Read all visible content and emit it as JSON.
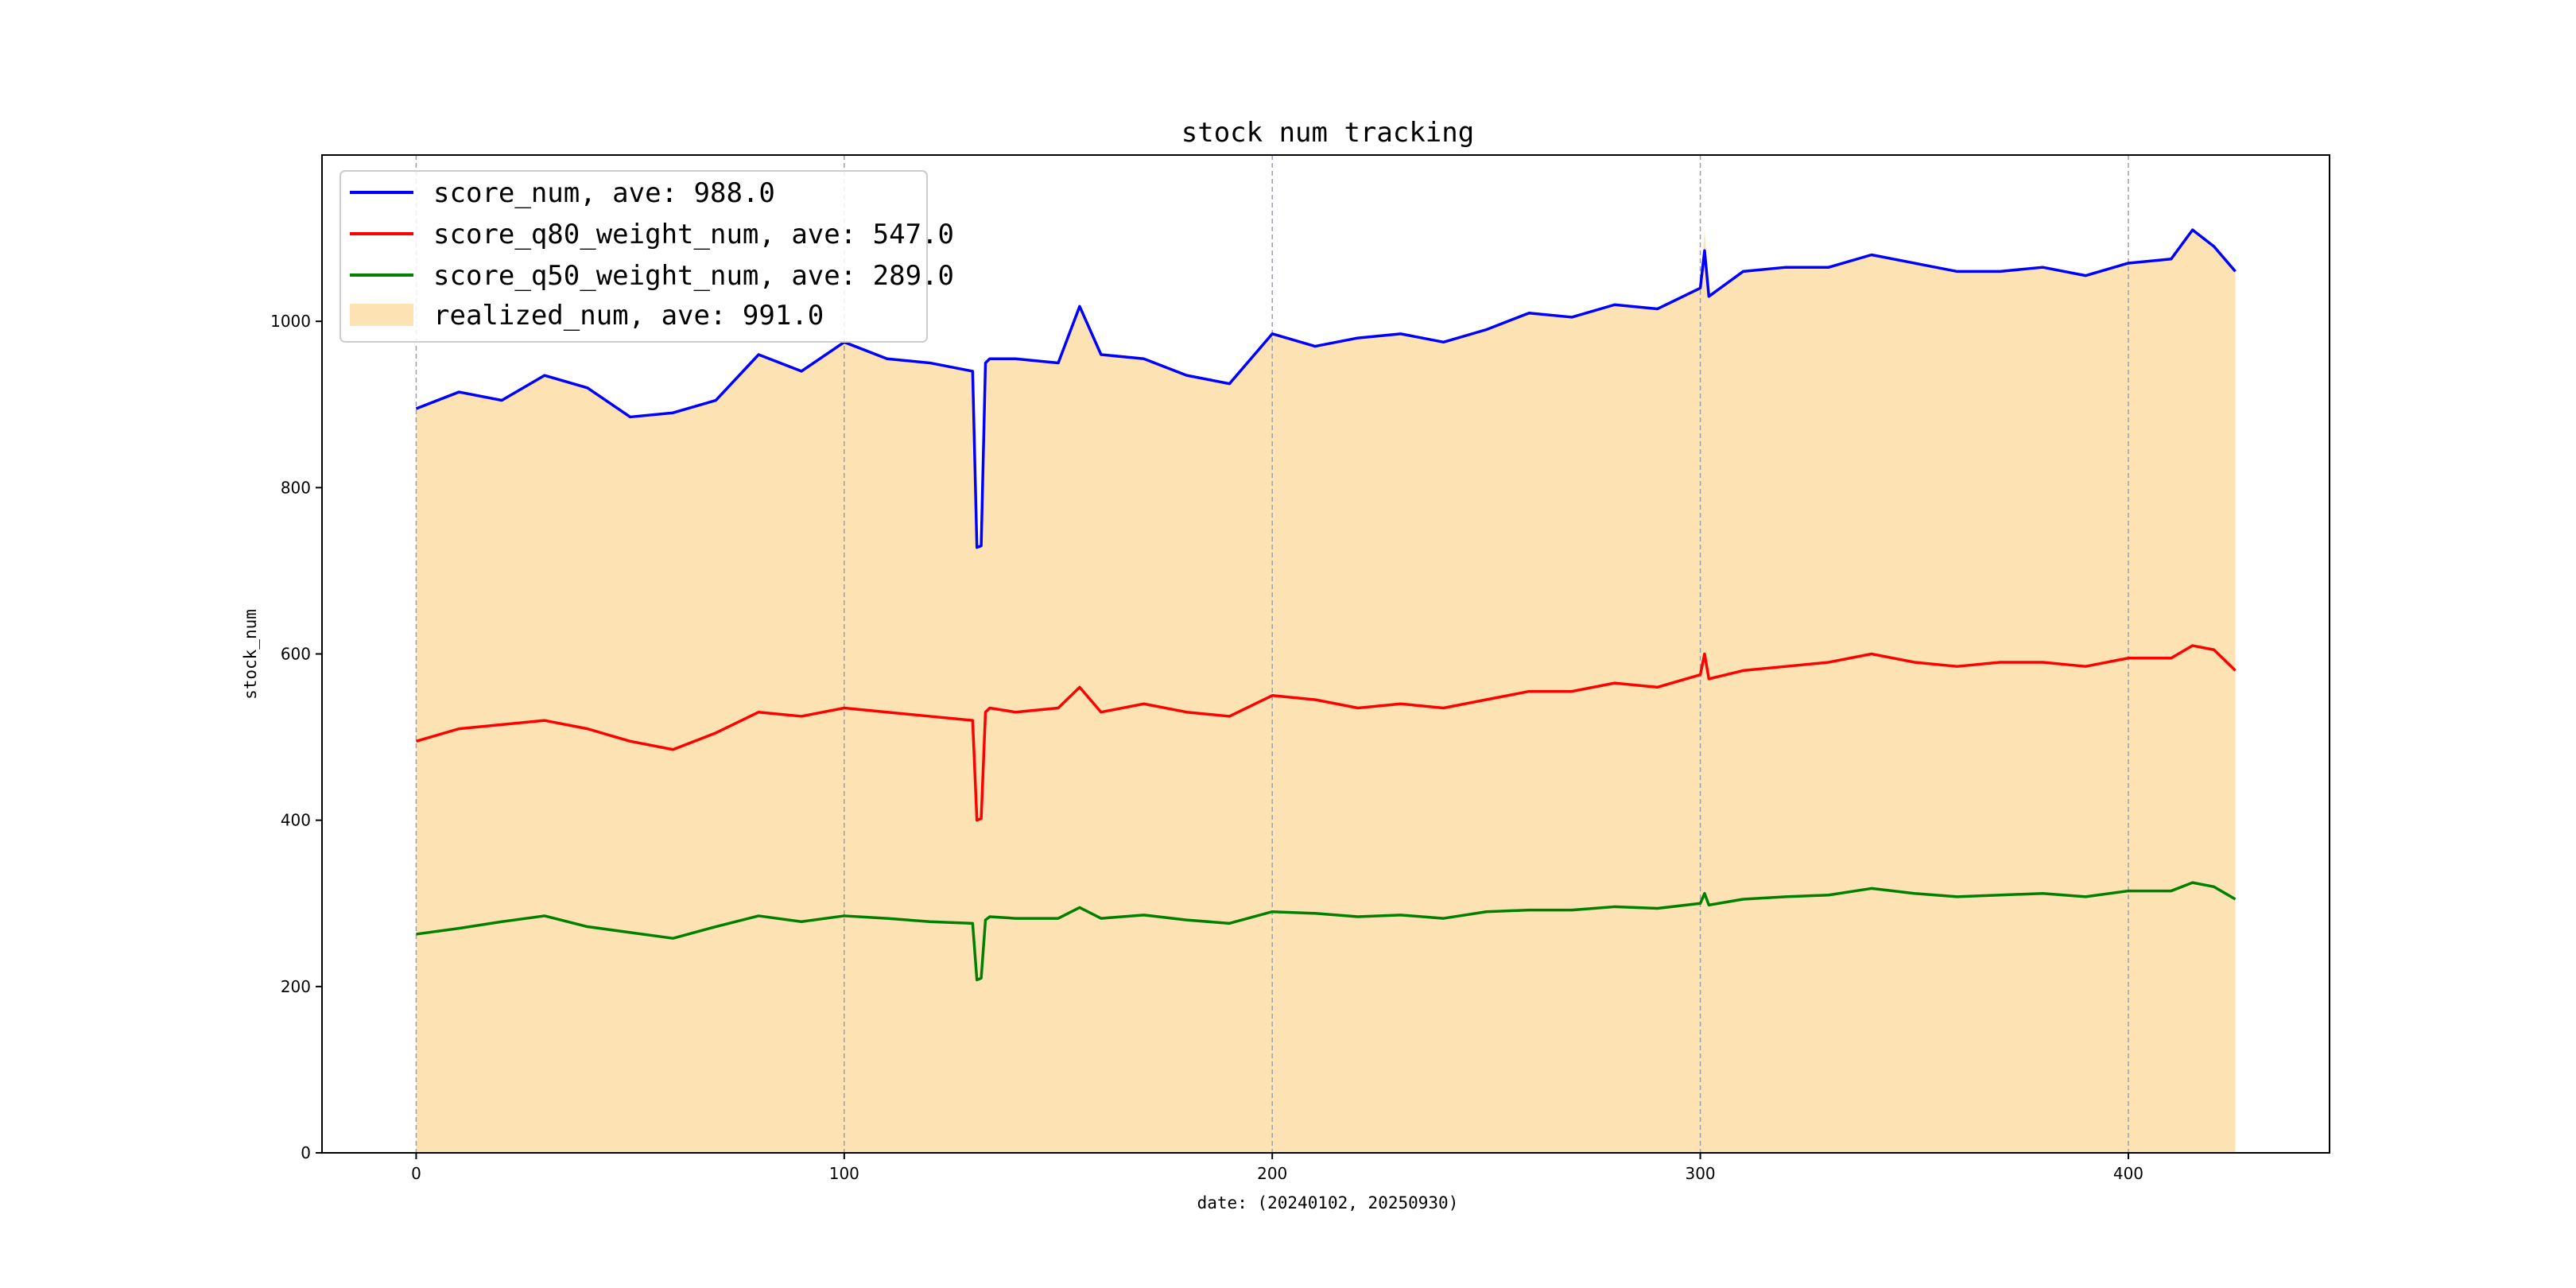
{
  "chart_data": {
    "type": "line",
    "title": "stock num tracking",
    "xlabel": "date: (20240102, 20250930)",
    "ylabel": "stock_num",
    "xlim": [
      -22,
      447
    ],
    "ylim": [
      0,
      1200
    ],
    "x_ticks": [
      0,
      100,
      200,
      300,
      400
    ],
    "y_ticks": [
      0,
      200,
      400,
      600,
      800,
      1000
    ],
    "grid": "x-axis dashed",
    "legend_position": "top-left",
    "x": [
      0,
      10,
      20,
      30,
      40,
      50,
      60,
      70,
      80,
      90,
      100,
      110,
      120,
      130,
      131,
      132,
      133,
      134,
      140,
      150,
      155,
      160,
      170,
      180,
      190,
      200,
      210,
      220,
      230,
      240,
      250,
      260,
      270,
      280,
      290,
      300,
      301,
      302,
      310,
      320,
      330,
      340,
      350,
      360,
      370,
      380,
      390,
      400,
      410,
      415,
      420,
      425
    ],
    "series": [
      {
        "name": "score_num",
        "legend": "score_num, ave: 988.0",
        "kind": "line",
        "color": "#0000ff",
        "values": [
          895,
          915,
          905,
          935,
          920,
          885,
          890,
          905,
          960,
          940,
          975,
          955,
          950,
          940,
          728,
          730,
          950,
          955,
          955,
          950,
          1018,
          960,
          955,
          935,
          925,
          985,
          970,
          980,
          985,
          975,
          990,
          1010,
          1005,
          1020,
          1015,
          1040,
          1085,
          1030,
          1060,
          1065,
          1065,
          1080,
          1070,
          1060,
          1060,
          1065,
          1055,
          1070,
          1075,
          1110,
          1090,
          1060
        ]
      },
      {
        "name": "score_q80_weight_num",
        "legend": "score_q80_weight_num, ave: 547.0",
        "kind": "line",
        "color": "#ff0000",
        "values": [
          495,
          510,
          515,
          520,
          510,
          495,
          485,
          505,
          530,
          525,
          535,
          530,
          525,
          520,
          400,
          402,
          530,
          535,
          530,
          535,
          560,
          530,
          540,
          530,
          525,
          550,
          545,
          535,
          540,
          535,
          545,
          555,
          555,
          565,
          560,
          575,
          600,
          570,
          580,
          585,
          590,
          600,
          590,
          585,
          590,
          590,
          585,
          595,
          595,
          610,
          605,
          580
        ]
      },
      {
        "name": "score_q50_weight_num",
        "legend": "score_q50_weight_num, ave: 289.0",
        "kind": "line",
        "color": "#008000",
        "values": [
          263,
          270,
          278,
          285,
          272,
          265,
          258,
          272,
          285,
          278,
          285,
          282,
          278,
          276,
          208,
          210,
          280,
          284,
          282,
          282,
          295,
          282,
          286,
          280,
          276,
          290,
          288,
          284,
          286,
          282,
          290,
          292,
          292,
          296,
          294,
          300,
          312,
          298,
          305,
          308,
          310,
          318,
          312,
          308,
          310,
          312,
          308,
          315,
          315,
          325,
          320,
          305
        ]
      },
      {
        "name": "realized_num",
        "legend": "realized_num, ave: 991.0",
        "kind": "area",
        "color": "#fde3b4",
        "values": [
          895,
          915,
          905,
          935,
          920,
          885,
          890,
          905,
          960,
          940,
          975,
          955,
          950,
          940,
          728,
          730,
          950,
          955,
          955,
          950,
          1018,
          960,
          955,
          935,
          925,
          985,
          970,
          980,
          985,
          975,
          990,
          1010,
          1005,
          1020,
          1015,
          1040,
          1110,
          1030,
          1060,
          1065,
          1065,
          1080,
          1070,
          1060,
          1060,
          1065,
          1055,
          1070,
          1075,
          1110,
          1090,
          1060
        ]
      }
    ]
  }
}
